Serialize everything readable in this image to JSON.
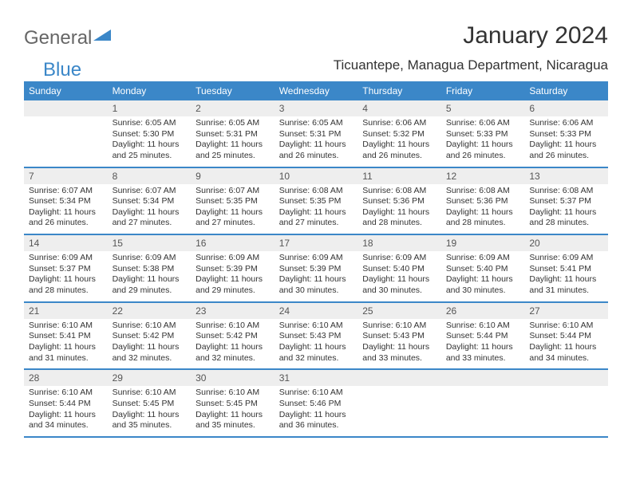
{
  "logo": {
    "text1": "General",
    "text2": "Blue"
  },
  "title": "January 2024",
  "location": "Ticuantepe, Managua Department, Nicaragua",
  "colors": {
    "header_bg": "#3b87c8",
    "daynum_bg": "#eeeeee",
    "text": "#333333",
    "logo_gray": "#666666",
    "logo_blue": "#3b87c8",
    "row_border": "#3b87c8"
  },
  "day_headers": [
    "Sunday",
    "Monday",
    "Tuesday",
    "Wednesday",
    "Thursday",
    "Friday",
    "Saturday"
  ],
  "weeks": [
    [
      null,
      {
        "n": "1",
        "sr": "6:05 AM",
        "ss": "5:30 PM",
        "dl": "11 hours and 25 minutes."
      },
      {
        "n": "2",
        "sr": "6:05 AM",
        "ss": "5:31 PM",
        "dl": "11 hours and 25 minutes."
      },
      {
        "n": "3",
        "sr": "6:05 AM",
        "ss": "5:31 PM",
        "dl": "11 hours and 26 minutes."
      },
      {
        "n": "4",
        "sr": "6:06 AM",
        "ss": "5:32 PM",
        "dl": "11 hours and 26 minutes."
      },
      {
        "n": "5",
        "sr": "6:06 AM",
        "ss": "5:33 PM",
        "dl": "11 hours and 26 minutes."
      },
      {
        "n": "6",
        "sr": "6:06 AM",
        "ss": "5:33 PM",
        "dl": "11 hours and 26 minutes."
      }
    ],
    [
      {
        "n": "7",
        "sr": "6:07 AM",
        "ss": "5:34 PM",
        "dl": "11 hours and 26 minutes."
      },
      {
        "n": "8",
        "sr": "6:07 AM",
        "ss": "5:34 PM",
        "dl": "11 hours and 27 minutes."
      },
      {
        "n": "9",
        "sr": "6:07 AM",
        "ss": "5:35 PM",
        "dl": "11 hours and 27 minutes."
      },
      {
        "n": "10",
        "sr": "6:08 AM",
        "ss": "5:35 PM",
        "dl": "11 hours and 27 minutes."
      },
      {
        "n": "11",
        "sr": "6:08 AM",
        "ss": "5:36 PM",
        "dl": "11 hours and 28 minutes."
      },
      {
        "n": "12",
        "sr": "6:08 AM",
        "ss": "5:36 PM",
        "dl": "11 hours and 28 minutes."
      },
      {
        "n": "13",
        "sr": "6:08 AM",
        "ss": "5:37 PM",
        "dl": "11 hours and 28 minutes."
      }
    ],
    [
      {
        "n": "14",
        "sr": "6:09 AM",
        "ss": "5:37 PM",
        "dl": "11 hours and 28 minutes."
      },
      {
        "n": "15",
        "sr": "6:09 AM",
        "ss": "5:38 PM",
        "dl": "11 hours and 29 minutes."
      },
      {
        "n": "16",
        "sr": "6:09 AM",
        "ss": "5:39 PM",
        "dl": "11 hours and 29 minutes."
      },
      {
        "n": "17",
        "sr": "6:09 AM",
        "ss": "5:39 PM",
        "dl": "11 hours and 30 minutes."
      },
      {
        "n": "18",
        "sr": "6:09 AM",
        "ss": "5:40 PM",
        "dl": "11 hours and 30 minutes."
      },
      {
        "n": "19",
        "sr": "6:09 AM",
        "ss": "5:40 PM",
        "dl": "11 hours and 30 minutes."
      },
      {
        "n": "20",
        "sr": "6:09 AM",
        "ss": "5:41 PM",
        "dl": "11 hours and 31 minutes."
      }
    ],
    [
      {
        "n": "21",
        "sr": "6:10 AM",
        "ss": "5:41 PM",
        "dl": "11 hours and 31 minutes."
      },
      {
        "n": "22",
        "sr": "6:10 AM",
        "ss": "5:42 PM",
        "dl": "11 hours and 32 minutes."
      },
      {
        "n": "23",
        "sr": "6:10 AM",
        "ss": "5:42 PM",
        "dl": "11 hours and 32 minutes."
      },
      {
        "n": "24",
        "sr": "6:10 AM",
        "ss": "5:43 PM",
        "dl": "11 hours and 32 minutes."
      },
      {
        "n": "25",
        "sr": "6:10 AM",
        "ss": "5:43 PM",
        "dl": "11 hours and 33 minutes."
      },
      {
        "n": "26",
        "sr": "6:10 AM",
        "ss": "5:44 PM",
        "dl": "11 hours and 33 minutes."
      },
      {
        "n": "27",
        "sr": "6:10 AM",
        "ss": "5:44 PM",
        "dl": "11 hours and 34 minutes."
      }
    ],
    [
      {
        "n": "28",
        "sr": "6:10 AM",
        "ss": "5:44 PM",
        "dl": "11 hours and 34 minutes."
      },
      {
        "n": "29",
        "sr": "6:10 AM",
        "ss": "5:45 PM",
        "dl": "11 hours and 35 minutes."
      },
      {
        "n": "30",
        "sr": "6:10 AM",
        "ss": "5:45 PM",
        "dl": "11 hours and 35 minutes."
      },
      {
        "n": "31",
        "sr": "6:10 AM",
        "ss": "5:46 PM",
        "dl": "11 hours and 36 minutes."
      },
      null,
      null,
      null
    ]
  ],
  "labels": {
    "sunrise": "Sunrise:",
    "sunset": "Sunset:",
    "daylight": "Daylight:"
  }
}
